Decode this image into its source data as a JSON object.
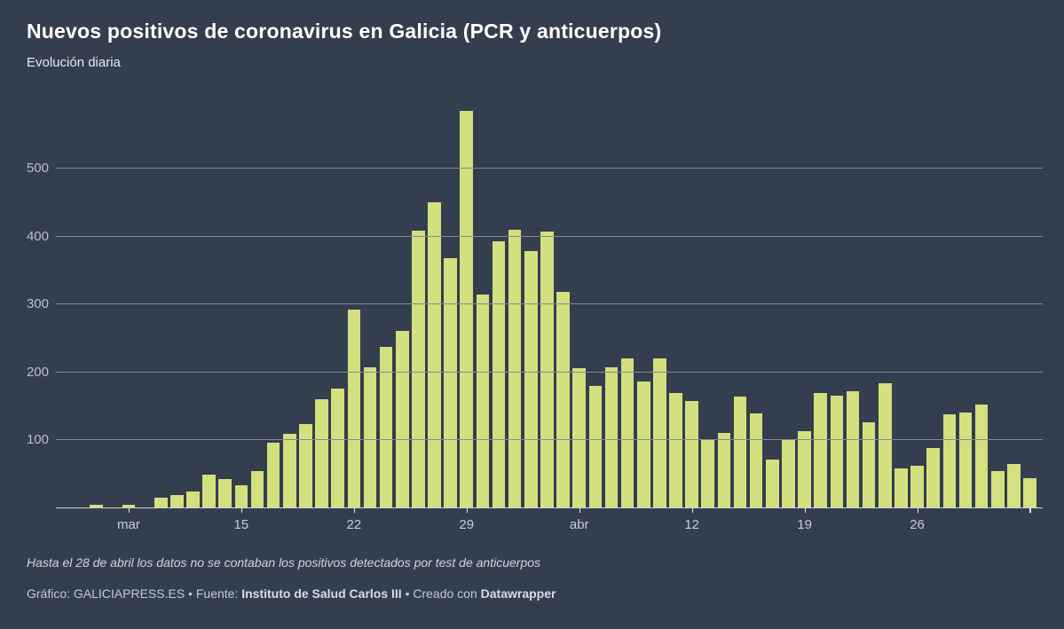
{
  "header": {
    "title": "Nuevos positivos de coronavirus en Galicia (PCR y anticuerpos)",
    "subtitle": "Evolución diaria"
  },
  "footer": {
    "note": "Hasta el 28 de abril los datos no se contaban los positivos detectados por test de anticuerpos",
    "credit": {
      "prefix": "Gráfico: GALICIAPRESS.ES • Fuente: ",
      "source": "Instituto de Salud Carlos III",
      "middle": " • Creado con ",
      "tool": "Datawrapper"
    }
  },
  "colors": {
    "background": "#333e4f",
    "bar": "#d4df7e",
    "gridline": "#828b96",
    "axis_baseline": "#cdd3da",
    "tick": "#e6eaee",
    "title_text": "#ffffff",
    "subtitle_text": "#e9ebee",
    "axis_label_text": "#b9c1ca",
    "x_label_text": "#c6ccd3",
    "footnote_text": "#d0d5db",
    "credit_text": "#c3c9d0"
  },
  "chart_data": {
    "type": "bar",
    "title": "Nuevos positivos de coronavirus en Galicia (PCR y anticuerpos)",
    "subtitle": "Evolución diaria",
    "xlabel": "",
    "ylabel": "",
    "ylim": [
      0,
      600
    ],
    "y_gridlines": [
      100,
      200,
      300,
      400,
      500
    ],
    "grid": "on",
    "legend": "none",
    "dates": [
      "2020-03-06",
      "2020-03-07",
      "2020-03-08",
      "2020-03-09",
      "2020-03-10",
      "2020-03-11",
      "2020-03-12",
      "2020-03-13",
      "2020-03-14",
      "2020-03-15",
      "2020-03-16",
      "2020-03-17",
      "2020-03-18",
      "2020-03-19",
      "2020-03-20",
      "2020-03-21",
      "2020-03-22",
      "2020-03-23",
      "2020-03-24",
      "2020-03-25",
      "2020-03-26",
      "2020-03-27",
      "2020-03-28",
      "2020-03-29",
      "2020-03-30",
      "2020-03-31",
      "2020-04-01",
      "2020-04-02",
      "2020-04-03",
      "2020-04-04",
      "2020-04-05",
      "2020-04-06",
      "2020-04-07",
      "2020-04-08",
      "2020-04-09",
      "2020-04-10",
      "2020-04-11",
      "2020-04-12",
      "2020-04-13",
      "2020-04-14",
      "2020-04-15",
      "2020-04-16",
      "2020-04-17",
      "2020-04-18",
      "2020-04-19",
      "2020-04-20",
      "2020-04-21",
      "2020-04-22",
      "2020-04-23",
      "2020-04-24",
      "2020-04-25",
      "2020-04-26",
      "2020-04-27",
      "2020-04-28",
      "2020-04-29",
      "2020-04-30",
      "2020-05-01",
      "2020-05-02",
      "2020-05-03"
    ],
    "values": [
      4,
      0,
      4,
      0,
      15,
      18,
      24,
      48,
      42,
      33,
      53,
      95,
      109,
      123,
      159,
      175,
      292,
      206,
      236,
      260,
      408,
      450,
      367,
      584,
      314,
      392,
      409,
      377,
      406,
      318,
      205,
      179,
      206,
      219,
      186,
      220,
      168,
      157,
      101,
      110,
      163,
      139,
      70,
      99,
      112,
      168,
      164,
      171,
      126,
      183,
      58,
      61,
      88,
      137,
      140,
      151,
      54,
      64,
      43
    ],
    "x_ticks": [
      {
        "index": 2,
        "label": "mar"
      },
      {
        "index": 9,
        "label": "15"
      },
      {
        "index": 16,
        "label": "22"
      },
      {
        "index": 23,
        "label": "29"
      },
      {
        "index": 30,
        "label": "abr"
      },
      {
        "index": 37,
        "label": "12"
      },
      {
        "index": 44,
        "label": "19"
      },
      {
        "index": 51,
        "label": "26"
      },
      {
        "index": 58,
        "label": ""
      }
    ]
  }
}
